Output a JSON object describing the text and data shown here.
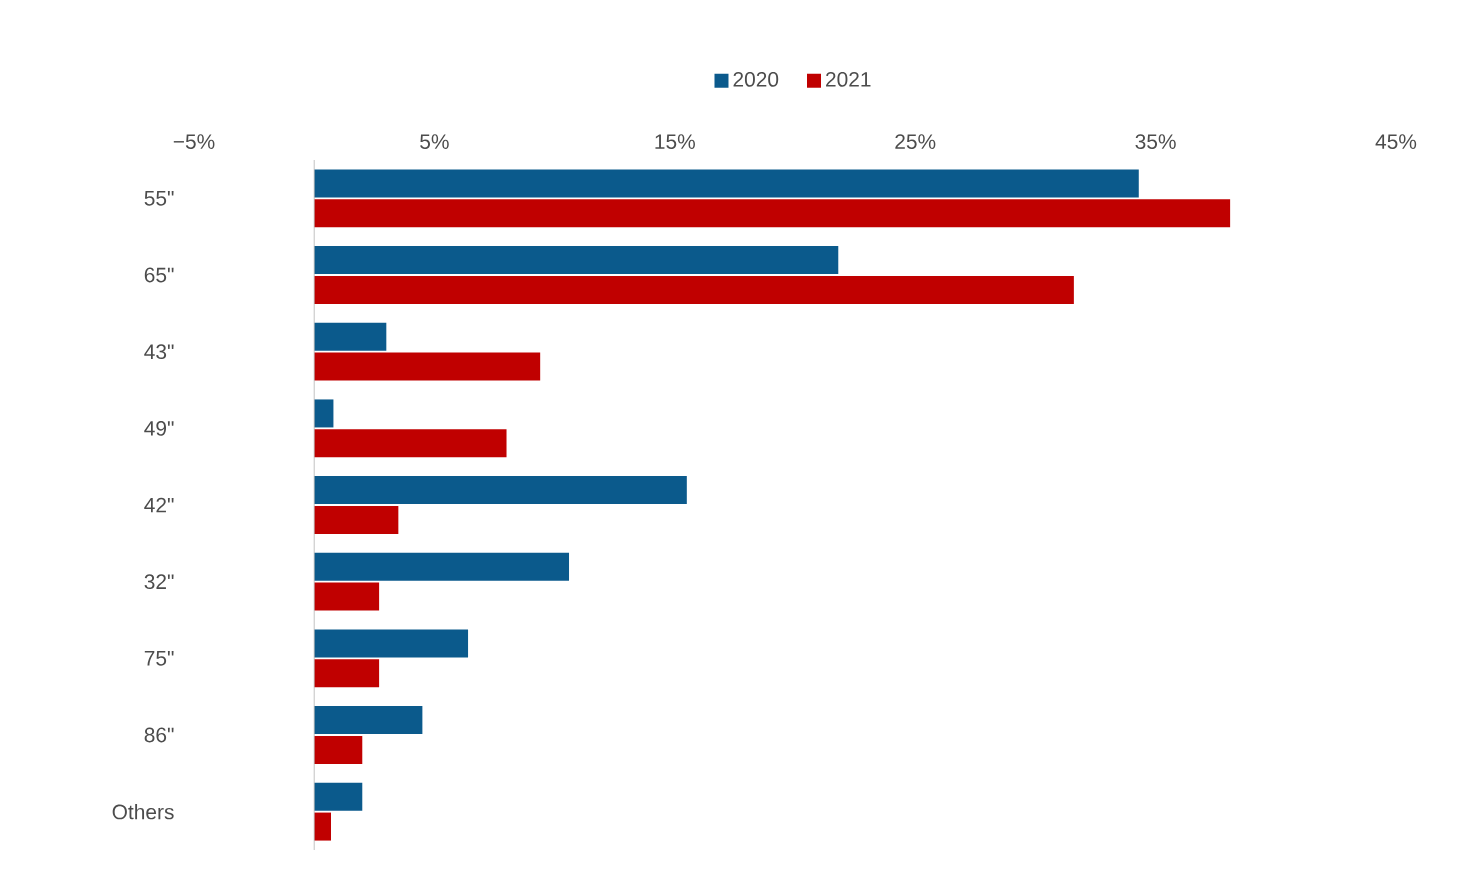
{
  "chart_data": {
    "type": "bar",
    "orientation": "horizontal",
    "categories": [
      "55\"",
      "65\"",
      "43\"",
      "49\"",
      "42\"",
      "32\"",
      "75\"",
      "86\"",
      "Others"
    ],
    "series": [
      {
        "name": "2020",
        "color": "#0b5a8c",
        "values": [
          34.3,
          21.8,
          3.0,
          0.8,
          15.5,
          10.6,
          6.4,
          4.5,
          2.0
        ]
      },
      {
        "name": "2021",
        "color": "#c00000",
        "values": [
          38.1,
          31.6,
          9.4,
          8.0,
          3.5,
          2.7,
          2.7,
          2.0,
          0.7
        ]
      }
    ],
    "xlim": [
      -5,
      45
    ],
    "xticks": [
      {
        "value": -5,
        "label": "−5%"
      },
      {
        "value": 5,
        "label": "5%"
      },
      {
        "value": 15,
        "label": "15%"
      },
      {
        "value": 25,
        "label": "25%"
      },
      {
        "value": 35,
        "label": "35%"
      },
      {
        "value": 45,
        "label": "45%"
      }
    ],
    "legend": "top",
    "grid": false
  }
}
